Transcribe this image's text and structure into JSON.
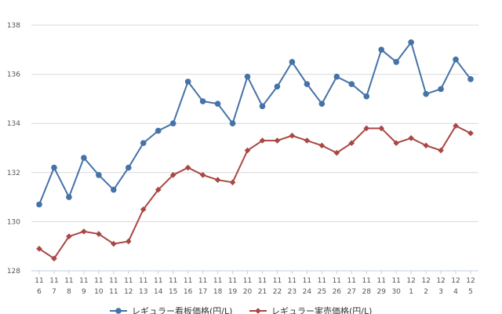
{
  "chart_data": {
    "type": "line",
    "title": "",
    "xlabel": "",
    "ylabel": "",
    "ylim": [
      128,
      138
    ],
    "yticks": [
      128,
      130,
      132,
      134,
      136,
      138
    ],
    "grid": true,
    "legend_position": "bottom",
    "categories": [
      [
        "11",
        "6"
      ],
      [
        "11",
        "7"
      ],
      [
        "11",
        "8"
      ],
      [
        "11",
        "9"
      ],
      [
        "11",
        "10"
      ],
      [
        "11",
        "11"
      ],
      [
        "11",
        "12"
      ],
      [
        "11",
        "13"
      ],
      [
        "11",
        "14"
      ],
      [
        "11",
        "15"
      ],
      [
        "11",
        "16"
      ],
      [
        "11",
        "17"
      ],
      [
        "11",
        "18"
      ],
      [
        "11",
        "19"
      ],
      [
        "11",
        "20"
      ],
      [
        "11",
        "21"
      ],
      [
        "11",
        "22"
      ],
      [
        "11",
        "23"
      ],
      [
        "11",
        "24"
      ],
      [
        "11",
        "25"
      ],
      [
        "11",
        "26"
      ],
      [
        "11",
        "27"
      ],
      [
        "11",
        "28"
      ],
      [
        "11",
        "29"
      ],
      [
        "11",
        "30"
      ],
      [
        "12",
        "1"
      ],
      [
        "12",
        "2"
      ],
      [
        "12",
        "3"
      ],
      [
        "12",
        "4"
      ],
      [
        "12",
        "5"
      ]
    ],
    "series": [
      {
        "name": "レギュラー看板価格(円/L)",
        "color": "#4572a7",
        "marker": "circle",
        "values": [
          130.7,
          132.2,
          131.0,
          132.6,
          131.9,
          131.3,
          132.2,
          133.2,
          133.7,
          134.0,
          135.7,
          134.9,
          134.8,
          134.0,
          135.9,
          134.7,
          135.5,
          136.5,
          135.6,
          134.8,
          135.9,
          135.6,
          135.1,
          137.0,
          136.5,
          137.3,
          135.2,
          135.4,
          136.6,
          135.8
        ]
      },
      {
        "name": "レギュラー実売価格(円/L)",
        "color": "#aa4643",
        "marker": "diamond",
        "values": [
          128.9,
          128.5,
          129.4,
          129.6,
          129.5,
          129.1,
          129.2,
          130.5,
          131.3,
          131.9,
          132.2,
          131.9,
          131.7,
          131.6,
          132.9,
          133.3,
          133.3,
          133.5,
          133.3,
          133.1,
          132.8,
          133.2,
          133.8,
          133.8,
          133.2,
          133.4,
          133.1,
          132.9,
          133.9,
          133.6
        ]
      }
    ]
  }
}
